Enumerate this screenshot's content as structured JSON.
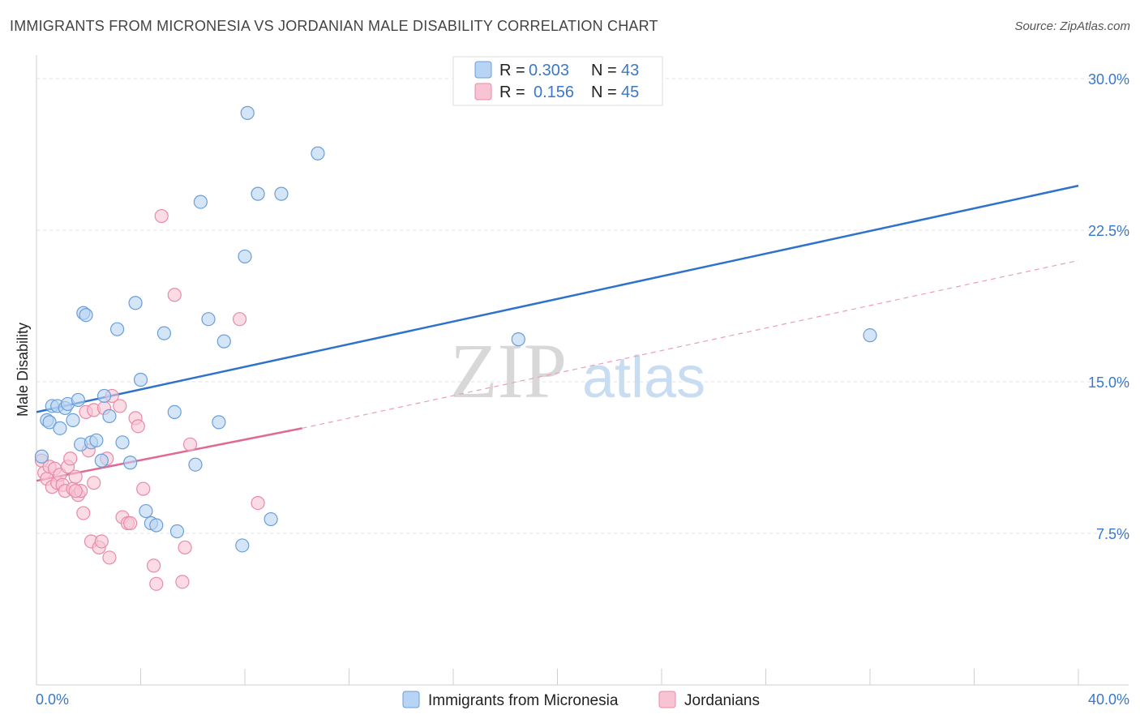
{
  "title": "IMMIGRANTS FROM MICRONESIA VS JORDANIAN MALE DISABILITY CORRELATION CHART",
  "source": "Source: ZipAtlas.com",
  "watermark": {
    "zip": "ZIP",
    "atlas": "atlas"
  },
  "legend": {
    "r_label": "R =",
    "n_label": "N =",
    "series": [
      {
        "r": "0.303",
        "n": "43"
      },
      {
        "r": "0.156",
        "n": "45"
      }
    ]
  },
  "colors": {
    "blue_fill": "#b8d4f4",
    "blue_stroke": "#6a9ed8",
    "blue_line": "#2f72cc",
    "pink_fill": "#f8c4d4",
    "pink_stroke": "#e88aa8",
    "pink_line": "#e06a96",
    "axis_text": "#3a78c9"
  },
  "chart_data": {
    "type": "scatter",
    "title": "IMMIGRANTS FROM MICRONESIA VS JORDANIAN MALE DISABILITY CORRELATION CHART",
    "xlabel": "",
    "ylabel": "Male Disability",
    "xlim": [
      0,
      40
    ],
    "ylim": [
      0,
      31.5
    ],
    "x_tick_labels": [
      "0.0%",
      "40.0%"
    ],
    "y_ticks": [
      7.5,
      15.0,
      22.5,
      30.0
    ],
    "y_tick_labels": [
      "7.5%",
      "15.0%",
      "22.5%",
      "30.0%"
    ],
    "grid": true,
    "legend_position": "top-center",
    "series": [
      {
        "name": "Immigrants from Micronesia",
        "color": "blue",
        "r": 0.303,
        "n": 43,
        "trend": {
          "x0": 0,
          "y0": 13.5,
          "x1": 40,
          "y1": 24.7,
          "style": "solid"
        },
        "points": [
          [
            0.2,
            11.3
          ],
          [
            0.4,
            13.1
          ],
          [
            0.5,
            13.0
          ],
          [
            0.6,
            13.8
          ],
          [
            0.8,
            13.8
          ],
          [
            0.9,
            12.7
          ],
          [
            1.1,
            13.7
          ],
          [
            1.2,
            13.9
          ],
          [
            1.4,
            13.1
          ],
          [
            1.6,
            14.1
          ],
          [
            1.7,
            11.9
          ],
          [
            1.8,
            18.4
          ],
          [
            1.9,
            18.3
          ],
          [
            2.1,
            12.0
          ],
          [
            2.3,
            12.1
          ],
          [
            2.5,
            11.1
          ],
          [
            2.6,
            14.3
          ],
          [
            2.8,
            13.3
          ],
          [
            3.1,
            17.6
          ],
          [
            3.3,
            12.0
          ],
          [
            3.6,
            11.0
          ],
          [
            3.8,
            18.9
          ],
          [
            4.0,
            15.1
          ],
          [
            4.2,
            8.6
          ],
          [
            4.4,
            8.0
          ],
          [
            4.6,
            7.9
          ],
          [
            4.9,
            17.4
          ],
          [
            5.3,
            13.5
          ],
          [
            5.4,
            7.6
          ],
          [
            6.1,
            10.9
          ],
          [
            6.3,
            23.9
          ],
          [
            6.6,
            18.1
          ],
          [
            7.0,
            13.0
          ],
          [
            7.2,
            17.0
          ],
          [
            7.9,
            6.9
          ],
          [
            8.0,
            21.2
          ],
          [
            8.1,
            28.3
          ],
          [
            8.5,
            24.3
          ],
          [
            9.0,
            8.2
          ],
          [
            9.4,
            24.3
          ],
          [
            10.8,
            26.3
          ],
          [
            18.5,
            17.1
          ],
          [
            32.0,
            17.3
          ]
        ]
      },
      {
        "name": "Jordanians",
        "color": "pink",
        "r": 0.156,
        "n": 45,
        "trend": {
          "x0": 0,
          "y0": 10.1,
          "x1": 10.2,
          "y1": 12.7,
          "x2": 40,
          "y2": 21.0,
          "style": "solid-then-dashed"
        },
        "points": [
          [
            0.2,
            11.1
          ],
          [
            0.3,
            10.5
          ],
          [
            0.4,
            10.2
          ],
          [
            0.5,
            10.8
          ],
          [
            0.6,
            9.8
          ],
          [
            0.7,
            10.7
          ],
          [
            0.8,
            10.0
          ],
          [
            0.9,
            10.4
          ],
          [
            1.0,
            9.9
          ],
          [
            1.1,
            9.6
          ],
          [
            1.2,
            10.8
          ],
          [
            1.3,
            11.2
          ],
          [
            1.4,
            9.7
          ],
          [
            1.5,
            10.3
          ],
          [
            1.6,
            9.4
          ],
          [
            1.7,
            9.6
          ],
          [
            1.8,
            8.5
          ],
          [
            1.9,
            13.5
          ],
          [
            2.0,
            11.6
          ],
          [
            2.1,
            7.1
          ],
          [
            2.2,
            13.6
          ],
          [
            2.4,
            6.8
          ],
          [
            2.5,
            7.1
          ],
          [
            2.6,
            13.7
          ],
          [
            2.7,
            11.2
          ],
          [
            2.8,
            6.3
          ],
          [
            2.9,
            14.3
          ],
          [
            3.2,
            13.8
          ],
          [
            3.3,
            8.3
          ],
          [
            3.5,
            8.0
          ],
          [
            3.6,
            8.0
          ],
          [
            3.8,
            13.2
          ],
          [
            3.9,
            12.8
          ],
          [
            4.1,
            9.7
          ],
          [
            4.5,
            5.9
          ],
          [
            4.6,
            5.0
          ],
          [
            4.8,
            23.2
          ],
          [
            5.3,
            19.3
          ],
          [
            5.6,
            5.1
          ],
          [
            5.7,
            6.8
          ],
          [
            5.9,
            11.9
          ],
          [
            7.8,
            18.1
          ],
          [
            8.5,
            9.0
          ],
          [
            1.5,
            9.6
          ],
          [
            2.2,
            10.0
          ]
        ]
      }
    ]
  }
}
